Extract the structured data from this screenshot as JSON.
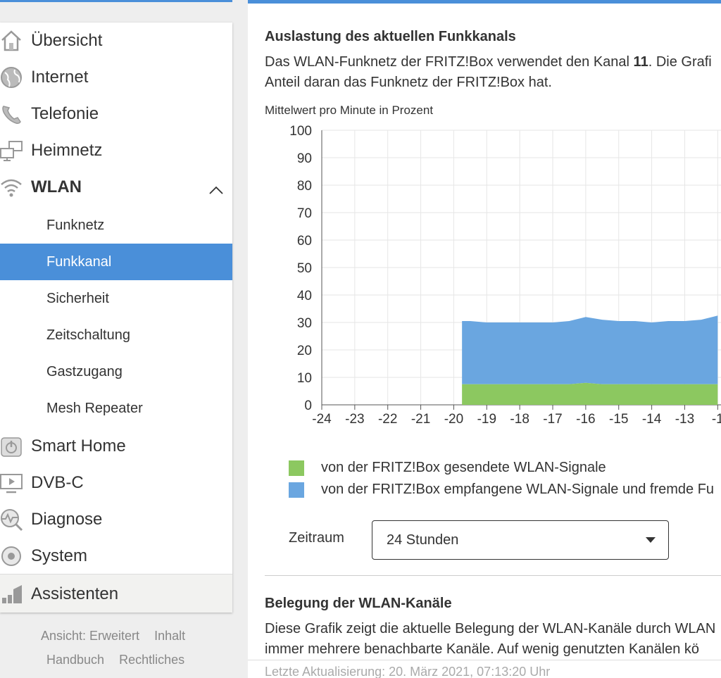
{
  "sidebar": {
    "items": [
      {
        "label": "Übersicht",
        "icon": "home-icon"
      },
      {
        "label": "Internet",
        "icon": "globe-icon"
      },
      {
        "label": "Telefonie",
        "icon": "phone-icon"
      },
      {
        "label": "Heimnetz",
        "icon": "network-icon"
      },
      {
        "label": "WLAN",
        "icon": "wifi-icon"
      }
    ],
    "wlan_sub": [
      "Funknetz",
      "Funkkanal",
      "Sicherheit",
      "Zeitschaltung",
      "Gastzugang",
      "Mesh Repeater"
    ],
    "items2": [
      {
        "label": "Smart Home",
        "icon": "power-icon"
      },
      {
        "label": "DVB-C",
        "icon": "tv-icon"
      },
      {
        "label": "Diagnose",
        "icon": "diagnose-icon"
      },
      {
        "label": "System",
        "icon": "system-icon"
      }
    ],
    "assistant": "Assistenten"
  },
  "footer": {
    "view": "Ansicht: Erweitert",
    "content": "Inhalt",
    "manual": "Handbuch",
    "legal": "Rechtliches"
  },
  "main": {
    "section1_title": "Auslastung des aktuellen Funkkanals",
    "section1_text_a": "Das WLAN-Funknetz der FRITZ!Box verwendet den Kanal ",
    "section1_channel": "11",
    "section1_text_b": ". Die Grafi",
    "section1_text_line2": "Anteil daran das Funknetz der FRITZ!Box hat.",
    "zeitraum_label": "Zeitraum",
    "zeitraum_value": "24 Stunden",
    "section2_title": "Belegung der WLAN-Kanäle",
    "section2_line1": "Diese Grafik zeigt die aktuelle Belegung der WLAN-Kanäle durch WLAN",
    "section2_line2": "immer mehrere benachbarte Kanäle. Auf wenig genutzten Kanälen kö",
    "last_update": "Letzte Aktualisierung: 20. März 2021, 07:13:20 Uhr"
  },
  "chart_data": {
    "type": "area",
    "title": "Mittelwert pro Minute in Prozent",
    "xlabel": "",
    "ylabel": "",
    "xlim": [
      -24,
      -11.9
    ],
    "ylim": [
      0,
      100
    ],
    "x_ticks": [
      "-24",
      "-23",
      "-22",
      "-21",
      "-20",
      "-19",
      "-18",
      "-17",
      "-16",
      "-15",
      "-14",
      "-13",
      "-1"
    ],
    "y_ticks": [
      0,
      10,
      20,
      30,
      40,
      50,
      60,
      70,
      80,
      90,
      100
    ],
    "grid": true,
    "stacked": true,
    "x": [
      -19.75,
      -19.5,
      -19,
      -18.5,
      -18,
      -17.5,
      -17,
      -16.5,
      -16,
      -15.5,
      -15,
      -14.5,
      -14,
      -13.5,
      -13,
      -12.5,
      -12
    ],
    "series": [
      {
        "name": "von der FRITZ!Box gesendete WLAN-Signale",
        "color": "#8cc860",
        "values": [
          7.5,
          7.5,
          7.5,
          7.5,
          7.5,
          7.5,
          7.5,
          7.5,
          8,
          7.5,
          7.5,
          7.5,
          7.5,
          7.5,
          7.5,
          7.5,
          7.5
        ]
      },
      {
        "name": "von der FRITZ!Box empfangene WLAN-Signale und fremde Fu",
        "color": "#6aa6e0",
        "values": [
          23,
          23,
          22.5,
          22.5,
          22.5,
          22.5,
          22.5,
          23,
          24,
          23.5,
          23,
          23,
          22.5,
          23,
          23,
          23.5,
          25
        ]
      }
    ],
    "legend_position": "bottom"
  }
}
